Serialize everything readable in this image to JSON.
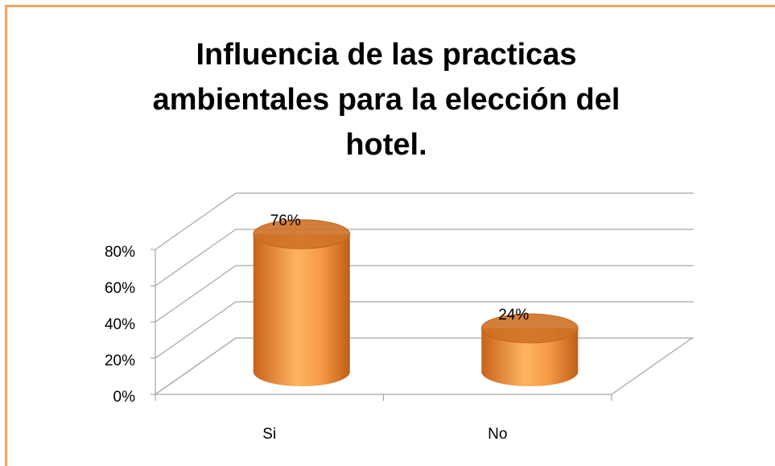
{
  "chart_data": {
    "type": "bar3d",
    "title": "Influencia de las practicas ambientales para la elección del hotel.",
    "categories": [
      "Si",
      "No"
    ],
    "values": [
      76,
      24
    ],
    "value_labels": [
      "76%",
      "24%"
    ],
    "color": "#e8852e",
    "ylim": [
      0,
      80
    ],
    "yticks": [
      {
        "value": 0,
        "label": "0%"
      },
      {
        "value": 20,
        "label": "20%"
      },
      {
        "value": 40,
        "label": "40%"
      },
      {
        "value": 60,
        "label": "60%"
      },
      {
        "value": 80,
        "label": "80%"
      }
    ],
    "grid": true
  }
}
